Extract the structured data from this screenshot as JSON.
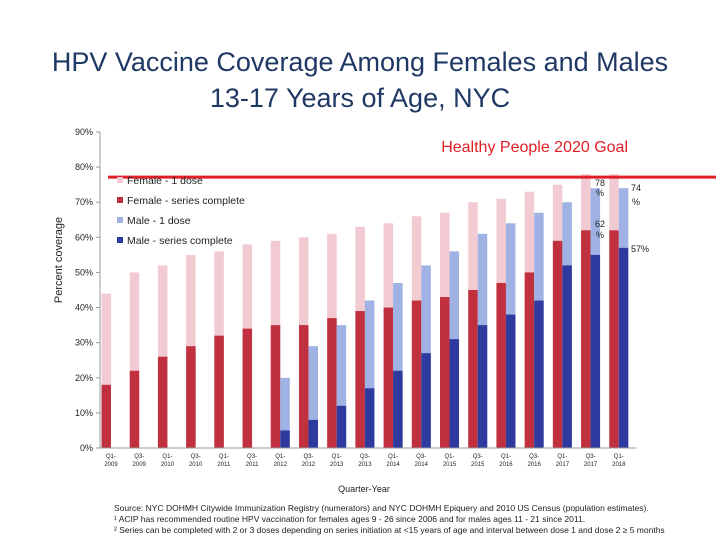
{
  "title": "HPV Vaccine Coverage Among Females and Males 13-17 Years of Age, NYC",
  "chart_data": {
    "type": "bar",
    "title": "HPV Vaccine Coverage Among Females and Males 13-17 Years of Age, NYC",
    "xlabel": "Quarter-Year",
    "ylabel": "Percent coverage",
    "ylim": [
      0,
      90
    ],
    "yticks": [
      "0%",
      "10%",
      "20%",
      "30%",
      "40%",
      "50%",
      "60%",
      "70%",
      "80%",
      "90%"
    ],
    "categories": [
      "Q1-2009",
      "Q3-2009",
      "Q1-2010",
      "Q3-2010",
      "Q1-2011",
      "Q3-2011",
      "Q1-2012",
      "Q3-2012",
      "Q1-2013",
      "Q3-2013",
      "Q1-2014",
      "Q3-2014",
      "Q1-2015",
      "Q3-2015",
      "Q1-2016",
      "Q3-2016",
      "Q1-2017",
      "Q3-2017",
      "Q1-2018"
    ],
    "category_labels": [
      [
        "Q1-",
        "2009"
      ],
      [
        "Q3-",
        "2009"
      ],
      [
        "Q1-",
        "2010"
      ],
      [
        "Q3-",
        "2010"
      ],
      [
        "Q1-",
        "2011"
      ],
      [
        "Q3-",
        "2011"
      ],
      [
        "Q1-",
        "2012"
      ],
      [
        "Q3-",
        "2012"
      ],
      [
        "Q1-",
        "2013"
      ],
      [
        "Q3-",
        "2013"
      ],
      [
        "Q1-",
        "2014"
      ],
      [
        "Q3-",
        "2014"
      ],
      [
        "Q1-",
        "2015"
      ],
      [
        "Q3-",
        "2015"
      ],
      [
        "Q1-",
        "2016"
      ],
      [
        "Q3-",
        "2016"
      ],
      [
        "Q1-",
        "2017"
      ],
      [
        "Q3-",
        "2017"
      ],
      [
        "Q1-",
        "2018"
      ]
    ],
    "series": [
      {
        "name": "Female - 1 dose",
        "color": "#f2cbd2",
        "values": [
          44,
          50,
          52,
          55,
          56,
          58,
          59,
          60,
          61,
          63,
          64,
          66,
          67,
          70,
          71,
          73,
          75,
          78,
          78
        ]
      },
      {
        "name": "Female - series complete",
        "color": "#c0303f",
        "values": [
          18,
          22,
          26,
          29,
          32,
          34,
          35,
          35,
          37,
          39,
          40,
          42,
          43,
          45,
          47,
          50,
          59,
          62,
          62
        ]
      },
      {
        "name": "Male - 1 dose",
        "color": "#9fb2e3",
        "values": [
          null,
          null,
          null,
          null,
          null,
          null,
          20,
          29,
          35,
          42,
          47,
          52,
          56,
          61,
          64,
          67,
          70,
          74,
          74
        ]
      },
      {
        "name": "Male - series complete",
        "color": "#2e3a9e",
        "values": [
          null,
          null,
          null,
          null,
          null,
          null,
          5,
          8,
          12,
          17,
          22,
          27,
          31,
          35,
          38,
          42,
          52,
          55,
          57
        ]
      }
    ],
    "goal": {
      "label": "Healthy People 2020 Goal",
      "value": 80,
      "color": "#e01f26"
    },
    "data_labels": [
      "78 %",
      "74 %",
      "62 %",
      "57%"
    ],
    "legend_position": "upper-left inside plot",
    "grid": false
  },
  "footnotes": {
    "source": "Source: NYC DOHMH Citywide Immunization Registry (numerators) and NYC DOHMH Epiquery and 2010 US Census (population estimates).",
    "note1": "¹ ACIP has recommended routine HPV vaccination for females ages 9 - 26 since 2006 and for males ages 11 - 21 since 2011.",
    "note2": "² Series can be completed with 2 or 3 doses depending on series initiation at <15 years of age and interval between dose 1 and dose 2 ≥ 5 months"
  }
}
